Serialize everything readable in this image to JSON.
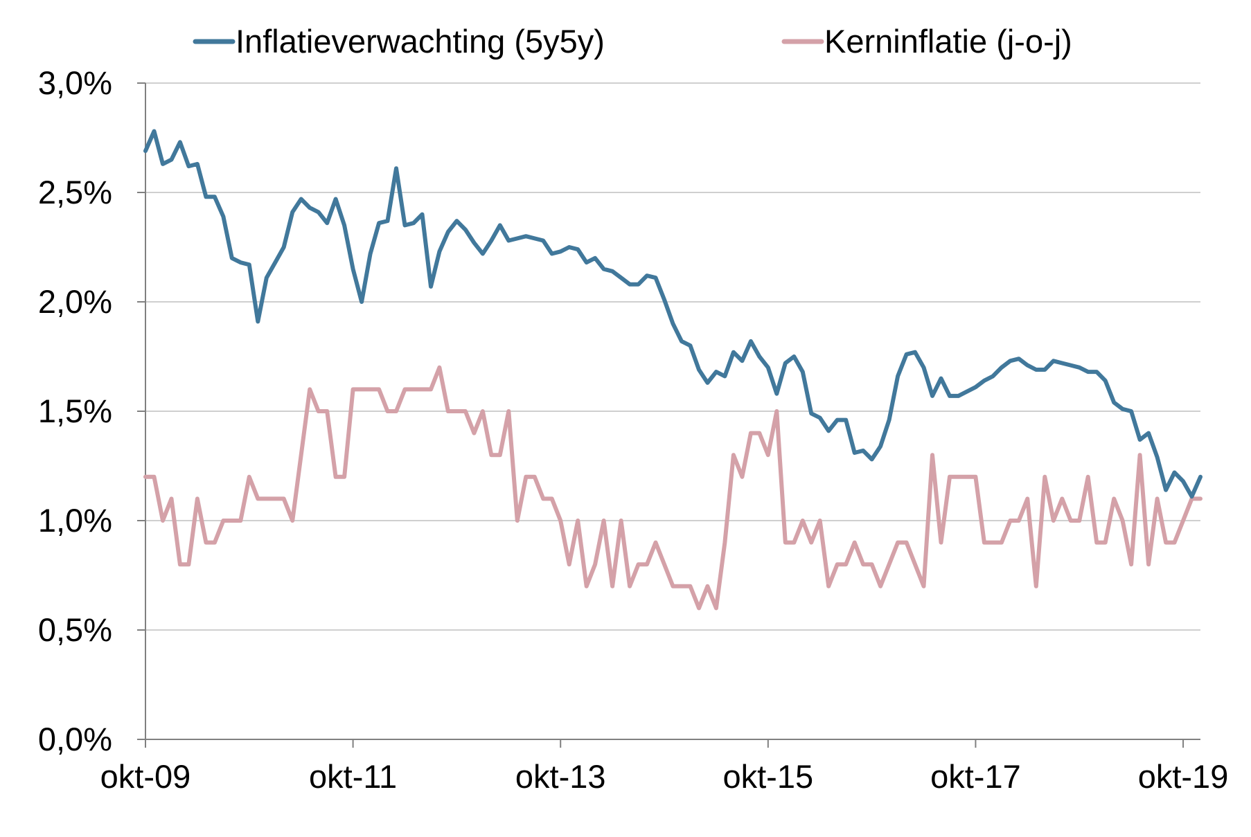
{
  "chart_data": {
    "type": "line",
    "title": "",
    "xlabel": "",
    "ylabel": "",
    "x_tick_labels": [
      "okt-09",
      "okt-11",
      "okt-13",
      "okt-15",
      "okt-17",
      "okt-19"
    ],
    "y_tick_labels": [
      "0,0%",
      "0,5%",
      "1,0%",
      "1,5%",
      "2,0%",
      "2,5%",
      "3,0%"
    ],
    "y_ticks": [
      0,
      0.5,
      1.0,
      1.5,
      2.0,
      2.5,
      3.0
    ],
    "ylim": [
      0,
      3.0
    ],
    "x_start": "2009-10",
    "x_end": "2019-12",
    "grid": true,
    "legend_position": "top",
    "series": [
      {
        "name": "Inflatieverwachting (5y5y)",
        "color": "#41789b",
        "values": [
          2.69,
          2.78,
          2.63,
          2.65,
          2.73,
          2.62,
          2.63,
          2.48,
          2.48,
          2.39,
          2.2,
          2.18,
          2.17,
          1.91,
          2.11,
          2.18,
          2.25,
          2.41,
          2.47,
          2.43,
          2.41,
          2.36,
          2.47,
          2.35,
          2.15,
          2.0,
          2.22,
          2.36,
          2.37,
          2.61,
          2.35,
          2.36,
          2.4,
          2.07,
          2.23,
          2.32,
          2.37,
          2.33,
          2.27,
          2.22,
          2.28,
          2.35,
          2.28,
          2.29,
          2.3,
          2.29,
          2.28,
          2.22,
          2.23,
          2.25,
          2.24,
          2.18,
          2.2,
          2.15,
          2.14,
          2.11,
          2.08,
          2.08,
          2.12,
          2.11,
          2.01,
          1.9,
          1.82,
          1.8,
          1.69,
          1.63,
          1.68,
          1.66,
          1.77,
          1.73,
          1.82,
          1.75,
          1.7,
          1.58,
          1.72,
          1.75,
          1.68,
          1.49,
          1.47,
          1.41,
          1.46,
          1.46,
          1.31,
          1.32,
          1.28,
          1.34,
          1.46,
          1.66,
          1.76,
          1.77,
          1.7,
          1.57,
          1.65,
          1.57,
          1.57,
          1.59,
          1.61,
          1.64,
          1.66,
          1.7,
          1.73,
          1.74,
          1.71,
          1.69,
          1.69,
          1.73,
          1.72,
          1.71,
          1.7,
          1.68,
          1.68,
          1.64,
          1.54,
          1.51,
          1.5,
          1.37,
          1.4,
          1.29,
          1.14,
          1.22,
          1.18,
          1.11,
          1.2
        ]
      },
      {
        "name": "Kerninflatie (j-o-j)",
        "color": "#d4a1a8",
        "values": [
          1.2,
          1.2,
          1.0,
          1.1,
          0.8,
          0.8,
          1.1,
          0.9,
          0.9,
          1.0,
          1.0,
          1.0,
          1.2,
          1.1,
          1.1,
          1.1,
          1.1,
          1.0,
          1.3,
          1.6,
          1.5,
          1.5,
          1.2,
          1.2,
          1.6,
          1.6,
          1.6,
          1.6,
          1.5,
          1.5,
          1.6,
          1.6,
          1.6,
          1.6,
          1.7,
          1.5,
          1.5,
          1.5,
          1.4,
          1.5,
          1.3,
          1.3,
          1.5,
          1.0,
          1.2,
          1.2,
          1.1,
          1.1,
          1.0,
          0.8,
          1.0,
          0.7,
          0.8,
          1.0,
          0.7,
          1.0,
          0.7,
          0.8,
          0.8,
          0.9,
          0.8,
          0.7,
          0.7,
          0.7,
          0.6,
          0.7,
          0.6,
          0.9,
          1.3,
          1.2,
          1.4,
          1.4,
          1.3,
          1.5,
          0.9,
          0.9,
          1.0,
          0.9,
          1.0,
          0.7,
          0.8,
          0.8,
          0.9,
          0.8,
          0.8,
          0.7,
          0.8,
          0.9,
          0.9,
          0.8,
          0.7,
          1.3,
          0.9,
          1.2,
          1.2,
          1.2,
          1.2,
          0.9,
          0.9,
          0.9,
          1.0,
          1.0,
          1.1,
          0.7,
          1.2,
          1.0,
          1.1,
          1.0,
          1.0,
          1.2,
          0.9,
          0.9,
          1.1,
          1.0,
          0.8,
          1.3,
          0.8,
          1.1,
          0.9,
          0.9,
          1.0,
          1.1,
          1.1
        ]
      }
    ]
  }
}
